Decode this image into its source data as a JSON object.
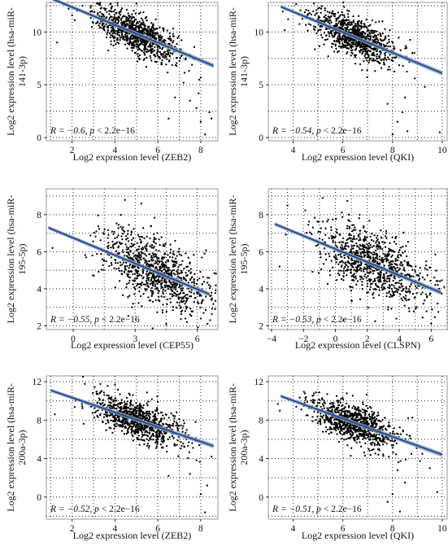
{
  "figure": {
    "colors": {
      "points": "#000000",
      "fit_line": "#1f4e9c",
      "confidence_band": "#9aa6b8",
      "grid": "#333333",
      "frame": "#999999"
    }
  },
  "chart_data": [
    {
      "type": "scatter",
      "xlabel": "Log2 expression level (ZEB2)",
      "ylabel": "Log2 expression level (hsa-miR-141-3p)",
      "xlim": [
        0.8,
        8.8
      ],
      "ylim": [
        -0.3,
        12.8
      ],
      "xticks": [
        2,
        4,
        6,
        8
      ],
      "yticks": [
        0,
        5,
        10
      ],
      "grid": true,
      "annotation": {
        "prefix": "R = −0.6, ",
        "p": "p",
        "suffix": " < 2.2e−16",
        "position": "bottom-left"
      },
      "fit": {
        "x": [
          1.0,
          8.6
        ],
        "y": [
          13.2,
          6.8
        ]
      },
      "cloud": {
        "x_center": 5.0,
        "x_sd": 1.0,
        "y_sd": 0.9,
        "n": 900
      },
      "outliers": [
        [
          7.5,
          3.5
        ],
        [
          7.8,
          2.8
        ],
        [
          8.0,
          1.5
        ],
        [
          8.2,
          0.3
        ],
        [
          7.9,
          4.2
        ],
        [
          8.4,
          2.4
        ],
        [
          6.5,
          1.8
        ],
        [
          7.2,
          5.2
        ],
        [
          8.5,
          1.8
        ],
        [
          6.8,
          3.8
        ],
        [
          2.0,
          11.6
        ],
        [
          1.3,
          9.0
        ]
      ]
    },
    {
      "type": "scatter",
      "xlabel": "Log2 expression level (QKI)",
      "ylabel": "Log2 expression level (hsa-miR-141-3p)",
      "xlim": [
        3.0,
        10.2
      ],
      "ylim": [
        -0.3,
        12.8
      ],
      "xticks": [
        4,
        6,
        8,
        10
      ],
      "yticks": [
        0,
        5,
        10
      ],
      "grid": true,
      "annotation": {
        "prefix": "R = −0.54, ",
        "p": "p",
        "suffix": " < 2.2e−16",
        "position": "bottom-left"
      },
      "fit": {
        "x": [
          3.5,
          10.0
        ],
        "y": [
          12.4,
          6.1
        ]
      },
      "cloud": {
        "x_center": 6.4,
        "x_sd": 0.85,
        "y_sd": 0.9,
        "n": 900
      },
      "outliers": [
        [
          8.0,
          0.3
        ],
        [
          8.2,
          1.5
        ],
        [
          8.4,
          2.4
        ],
        [
          8.6,
          0.6
        ],
        [
          7.8,
          3.2
        ],
        [
          9.9,
          0.5
        ],
        [
          9.3,
          4.8
        ],
        [
          8.9,
          5.6
        ],
        [
          8.5,
          3.8
        ]
      ]
    },
    {
      "type": "scatter",
      "xlabel": "Log2 expression level (CEP55)",
      "ylabel": "Log2 expression level (hsa-miR-195-5p)",
      "xlim": [
        -1.3,
        7.0
      ],
      "ylim": [
        1.8,
        9.4
      ],
      "xticks": [
        0,
        3,
        6
      ],
      "yticks": [
        2,
        4,
        6,
        8
      ],
      "grid": true,
      "annotation": {
        "prefix": "R = −0.55, ",
        "p": "p",
        "suffix": " < 2.2e−16",
        "position": "bottom-left"
      },
      "fit": {
        "x": [
          -1.2,
          6.6
        ],
        "y": [
          7.3,
          3.7
        ]
      },
      "cloud": {
        "x_center": 4.0,
        "x_sd": 1.3,
        "y_sd": 0.9,
        "n": 900
      },
      "outliers": [
        [
          3.3,
          8.6
        ],
        [
          2.5,
          8.8
        ],
        [
          6.5,
          4.6
        ],
        [
          6.7,
          3.4
        ],
        [
          5.5,
          2.2
        ],
        [
          4.5,
          2.1
        ],
        [
          -1.0,
          6.2
        ]
      ]
    },
    {
      "type": "scatter",
      "xlabel": "Log2 expression level (CLSPN)",
      "ylabel": "Log2 expression level (hsa-miR-195-5p)",
      "xlim": [
        -4.2,
        7.0
      ],
      "ylim": [
        1.8,
        9.4
      ],
      "xticks": [
        -4,
        -2,
        0,
        2,
        4,
        6
      ],
      "yticks": [
        2,
        4,
        6,
        8
      ],
      "grid": true,
      "annotation": {
        "prefix": "R = −0.53, ",
        "p": "p",
        "suffix": " < 2.2e−16",
        "position": "bottom-left"
      },
      "fit": {
        "x": [
          -3.8,
          6.6
        ],
        "y": [
          7.5,
          3.8
        ]
      },
      "cloud": {
        "x_center": 2.3,
        "x_sd": 1.7,
        "y_sd": 0.9,
        "n": 900
      },
      "outliers": [
        [
          -3.0,
          8.5
        ],
        [
          -3.5,
          5.2
        ],
        [
          6.5,
          4.0
        ],
        [
          6.4,
          3.2
        ],
        [
          0.5,
          2.3
        ],
        [
          -0.8,
          8.9
        ]
      ]
    },
    {
      "type": "scatter",
      "xlabel": "Log2 expression level (ZEB2)",
      "ylabel": "Log2 expression level (hsa-miR-200a-3p)",
      "xlim": [
        0.8,
        8.8
      ],
      "ylim": [
        -2.3,
        12.6
      ],
      "xticks": [
        2,
        4,
        6,
        8
      ],
      "yticks": [
        0,
        4,
        8,
        12
      ],
      "grid": true,
      "annotation": {
        "prefix": "R = −0.52, ",
        "p": "p",
        "suffix": " < 2.2e−16",
        "position": "bottom-left"
      },
      "fit": {
        "x": [
          1.0,
          8.6
        ],
        "y": [
          11.1,
          5.3
        ]
      },
      "cloud": {
        "x_center": 5.0,
        "x_sd": 1.0,
        "y_sd": 1.0,
        "n": 900
      },
      "outliers": [
        [
          8.0,
          0.3
        ],
        [
          8.2,
          -1.6
        ],
        [
          8.3,
          1.2
        ],
        [
          7.5,
          2.4
        ],
        [
          7.8,
          3.8
        ],
        [
          6.5,
          2.2
        ],
        [
          8.5,
          4.2
        ],
        [
          4.0,
          11.7
        ],
        [
          1.2,
          8.6
        ]
      ]
    },
    {
      "type": "scatter",
      "xlabel": "Log2 expression level (QKI)",
      "ylabel": "Log2 expression level (hsa-miR-200a-3p)",
      "xlim": [
        3.0,
        10.2
      ],
      "ylim": [
        -2.3,
        12.6
      ],
      "xticks": [
        4,
        6,
        8,
        10
      ],
      "yticks": [
        0,
        4,
        8,
        12
      ],
      "grid": true,
      "annotation": {
        "prefix": "R = −0.51, ",
        "p": "p",
        "suffix": " < 2.2e−16",
        "position": "bottom-left"
      },
      "fit": {
        "x": [
          3.5,
          10.0
        ],
        "y": [
          10.5,
          4.4
        ]
      },
      "cloud": {
        "x_center": 6.4,
        "x_sd": 0.85,
        "y_sd": 1.0,
        "n": 900
      },
      "outliers": [
        [
          8.0,
          0.3
        ],
        [
          8.3,
          -1.5
        ],
        [
          8.5,
          1.5
        ],
        [
          8.2,
          2.8
        ],
        [
          9.8,
          0.5
        ],
        [
          9.5,
          3.0
        ],
        [
          9.2,
          4.5
        ],
        [
          7.8,
          -0.5
        ]
      ]
    }
  ]
}
